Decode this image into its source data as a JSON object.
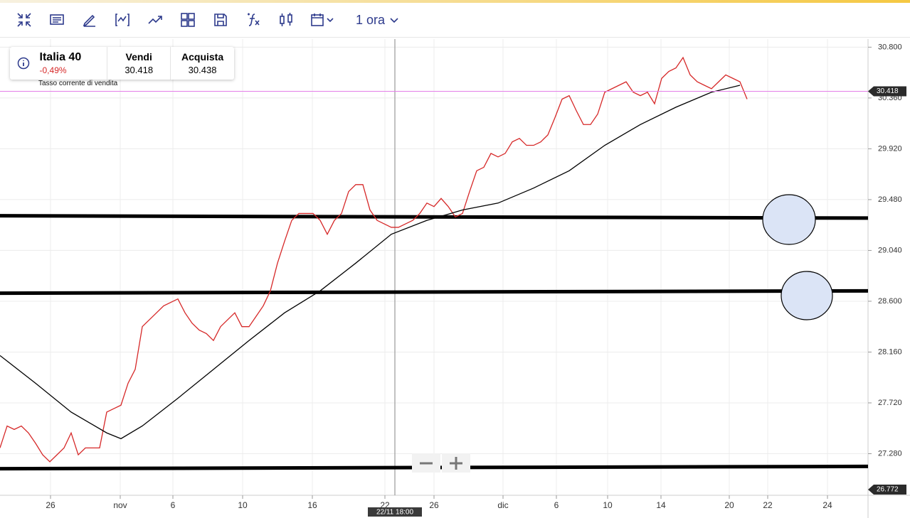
{
  "toolbar": {
    "interval": "1 ora"
  },
  "instrument": {
    "name": "Italia 40",
    "change": "-0,49%",
    "sell_label": "Vendi",
    "sell": 30.418,
    "buy_label": "Acquista",
    "buy": 30.438,
    "note": "Tasso corrente di vendita"
  },
  "chart_data": {
    "type": "line",
    "xlim": [
      0,
      122
    ],
    "ylim": [
      26.92,
      30.87
    ],
    "xticks": [
      {
        "value": 7.1,
        "label": "26"
      },
      {
        "value": 16.9,
        "label": "nov"
      },
      {
        "value": 24.3,
        "label": "6"
      },
      {
        "value": 34.1,
        "label": "10"
      },
      {
        "value": 43.9,
        "label": "16"
      },
      {
        "value": 54.1,
        "label": "22"
      },
      {
        "value": 61,
        "label": "26"
      },
      {
        "value": 70.7,
        "label": "dic"
      },
      {
        "value": 78.2,
        "label": "6"
      },
      {
        "value": 85.4,
        "label": "10"
      },
      {
        "value": 92.9,
        "label": "14"
      },
      {
        "value": 102.5,
        "label": "20"
      },
      {
        "value": 107.9,
        "label": "22"
      },
      {
        "value": 116.3,
        "label": "24"
      }
    ],
    "yticks": [
      {
        "value": 30.8,
        "label": "30.800"
      },
      {
        "value": 30.36,
        "label": "30.360"
      },
      {
        "value": 29.92,
        "label": "29.920"
      },
      {
        "value": 29.48,
        "label": "29.480"
      },
      {
        "value": 29.04,
        "label": "29.040"
      },
      {
        "value": 28.6,
        "label": "28.600"
      },
      {
        "value": 28.16,
        "label": "28.160"
      },
      {
        "value": 27.72,
        "label": "27.720"
      },
      {
        "value": 27.28,
        "label": "27.280"
      }
    ],
    "grid": true,
    "series": [
      {
        "color": "#d62828",
        "x": [
          0,
          1,
          2,
          3,
          4,
          5,
          6,
          7,
          8,
          9,
          10,
          11,
          12,
          13,
          14,
          15,
          16,
          17,
          18,
          19,
          20,
          21,
          22,
          23,
          24,
          25,
          26,
          27,
          28,
          29,
          30,
          31,
          32,
          33,
          34,
          35,
          36,
          37,
          38,
          39,
          40,
          41,
          42,
          43,
          44,
          45,
          46,
          47,
          48,
          49,
          50,
          51,
          52,
          53,
          54,
          55,
          56,
          57,
          58,
          59,
          60,
          61,
          62,
          63,
          64,
          65,
          66,
          67,
          68,
          69,
          70,
          71,
          72,
          73,
          74,
          75,
          76,
          77,
          78,
          79,
          80,
          81,
          82,
          83,
          84,
          85,
          86,
          87,
          88,
          89,
          90,
          91,
          92,
          93,
          94,
          95,
          96,
          97,
          98,
          99,
          100,
          101,
          102,
          103,
          104,
          105
        ],
        "values": [
          27.33,
          27.52,
          27.49,
          27.52,
          27.46,
          27.37,
          27.27,
          27.21,
          27.27,
          27.33,
          27.46,
          27.27,
          27.33,
          27.33,
          27.33,
          27.64,
          27.67,
          27.7,
          27.89,
          28.01,
          28.38,
          28.44,
          28.5,
          28.56,
          28.59,
          28.62,
          28.5,
          28.41,
          28.35,
          28.32,
          28.26,
          28.38,
          28.44,
          28.5,
          28.38,
          28.38,
          28.47,
          28.56,
          28.69,
          28.93,
          29.12,
          29.3,
          29.36,
          29.36,
          29.36,
          29.3,
          29.18,
          29.3,
          29.36,
          29.55,
          29.61,
          29.61,
          29.39,
          29.3,
          29.27,
          29.24,
          29.24,
          29.27,
          29.3,
          29.36,
          29.45,
          29.42,
          29.49,
          29.42,
          29.33,
          29.36,
          29.55,
          29.73,
          29.76,
          29.88,
          29.85,
          29.88,
          29.98,
          30.01,
          29.95,
          29.95,
          29.98,
          30.04,
          30.19,
          30.35,
          30.38,
          30.25,
          30.13,
          30.13,
          30.22,
          30.41,
          30.44,
          30.47,
          30.5,
          30.41,
          30.38,
          30.41,
          30.31,
          30.53,
          30.59,
          30.62,
          30.71,
          30.56,
          30.5,
          30.47,
          30.44,
          30.5,
          30.56,
          30.53,
          30.5,
          30.35
        ]
      },
      {
        "color": "#000000",
        "x": [
          0,
          5,
          10,
          15,
          17,
          20,
          25,
          30,
          35,
          40,
          45,
          50,
          55,
          60,
          65,
          70,
          75,
          80,
          85,
          90,
          95,
          100,
          104
        ],
        "values": [
          28.13,
          27.89,
          27.64,
          27.46,
          27.41,
          27.52,
          27.76,
          28.01,
          28.26,
          28.5,
          28.69,
          28.93,
          29.18,
          29.3,
          29.39,
          29.45,
          29.58,
          29.73,
          29.95,
          30.13,
          30.28,
          30.41,
          30.47
        ]
      }
    ],
    "hlines": [
      {
        "start": 29.34,
        "end": 29.32
      },
      {
        "start": 28.67,
        "end": 28.69
      },
      {
        "start": 27.15,
        "end": 27.17
      }
    ],
    "current_price": 30.418,
    "bottom_label": "26.772",
    "crosshair": {
      "x": 55.5,
      "label": "22/11 18:00"
    }
  }
}
